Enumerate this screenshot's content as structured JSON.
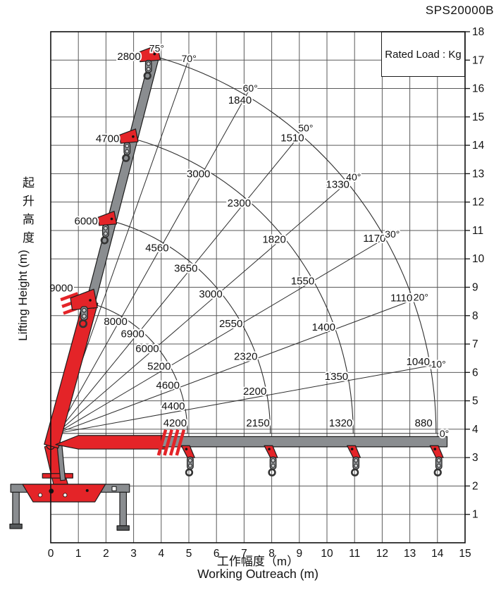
{
  "model": "SPS20000B",
  "legend": {
    "rated_load": "Rated Load : Kg"
  },
  "axes": {
    "x": {
      "label_cn": "工作幅度（m）",
      "label_en": "Working Outreach (m)",
      "min": 0,
      "max": 15,
      "ticks": [
        0,
        1,
        2,
        3,
        4,
        5,
        6,
        7,
        8,
        9,
        10,
        11,
        12,
        13,
        14,
        15
      ]
    },
    "y": {
      "label_cn": "起升高度",
      "label_en": "Lifting Height (m)",
      "min": 0,
      "max": 18,
      "ticks": [
        1,
        2,
        3,
        4,
        5,
        6,
        7,
        8,
        9,
        10,
        11,
        12,
        13,
        14,
        15,
        16,
        17,
        18
      ]
    }
  },
  "chart_data": {
    "type": "line",
    "title": "SPS20000B crane rated load envelope",
    "xlabel": "Working Outreach (m)",
    "ylabel": "Lifting Height (m)",
    "xlim": [
      0,
      15
    ],
    "ylim": [
      0,
      18
    ],
    "grid": true,
    "units": "Kg",
    "pivot": {
      "x": 0.2,
      "y": 3.85
    },
    "boom_angles_deg": [
      0,
      10,
      20,
      30,
      40,
      50,
      60,
      70,
      75
    ],
    "angle_labels": [
      "0°",
      "10°",
      "20°",
      "30°",
      "40°",
      "50°",
      "60°",
      "70°",
      "75°"
    ],
    "load_label_angles_deg": [
      0,
      10,
      20,
      30,
      40,
      50,
      60,
      75
    ],
    "extensions": [
      {
        "name": "boom-extension-1",
        "radius_m": 4.75,
        "rated_loads_kg": [
          4200,
          4400,
          4600,
          5200,
          6000,
          6900,
          8000,
          9000
        ]
      },
      {
        "name": "boom-extension-2",
        "radius_m": 7.75,
        "rated_loads_kg": [
          2150,
          2200,
          2320,
          2550,
          3000,
          3650,
          4560,
          6000
        ]
      },
      {
        "name": "boom-extension-3",
        "radius_m": 10.75,
        "rated_loads_kg": [
          1320,
          1350,
          1400,
          1550,
          1820,
          2300,
          3000,
          4700
        ]
      },
      {
        "name": "boom-extension-4",
        "radius_m": 13.75,
        "rated_loads_kg": [
          880,
          1040,
          1110,
          1170,
          1330,
          1510,
          1840,
          2800
        ]
      }
    ]
  },
  "colors": {
    "crane_red": "#e42428",
    "boom_gray": "#8a8d90",
    "foot_gray": "#55585a",
    "outline": "#1c1c1c",
    "grid": "#5a5a5a",
    "curve": "#2e2e2e",
    "text": "#111111"
  }
}
